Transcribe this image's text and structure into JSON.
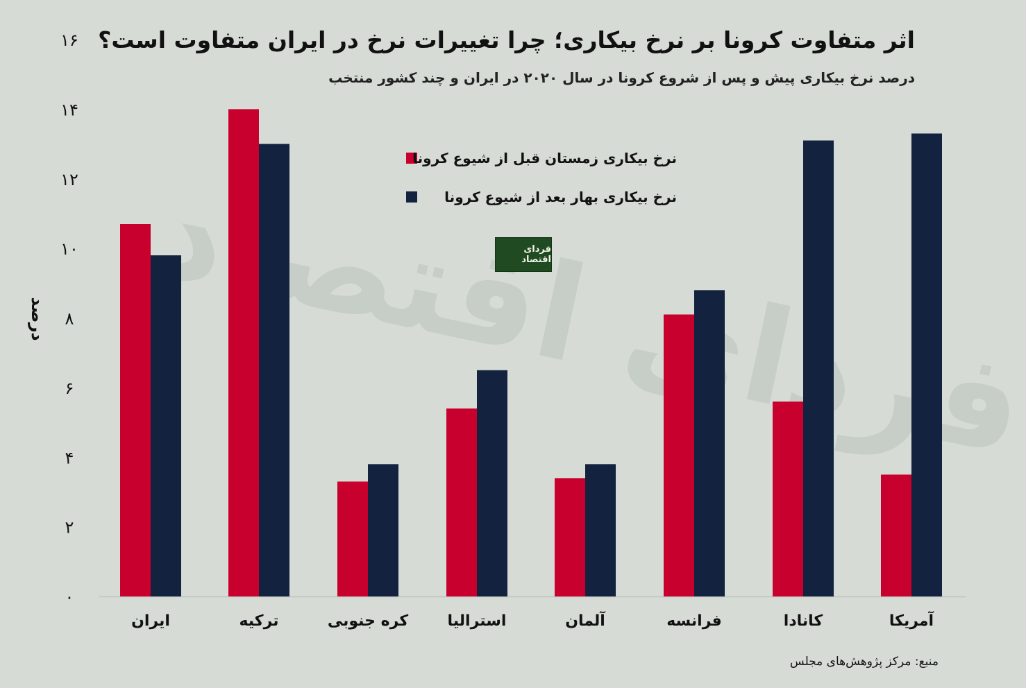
{
  "chart_data": {
    "type": "bar",
    "title": "اثر متفاوت کرونا بر نرخ بیکاری؛ چرا تغییرات نرخ در ایران متفاوت است؟",
    "subtitle": "درصد نرخ بیکاری پیش و پس از شروع کرونا در سال ۲۰۲۰ در ایران و چند کشور منتخب",
    "ylabel": "درصد",
    "xlabel": "",
    "ylim": [
      0,
      16
    ],
    "yticks": [
      "۰",
      "۲",
      "۴",
      "۶",
      "۸",
      "۱۰",
      "۱۲",
      "۱۴",
      "۱۶"
    ],
    "ytick_values": [
      0,
      2,
      4,
      6,
      8,
      10,
      12,
      14,
      16
    ],
    "categories": [
      "ایران",
      "ترکیه",
      "کره جنوبی",
      "استرالیا",
      "آلمان",
      "فرانسه",
      "کانادا",
      "آمریکا"
    ],
    "series": [
      {
        "name": "نرخ بیکاری زمستان قبل از شیوع کرونا",
        "color": "#c8002e",
        "values": [
          10.7,
          14.0,
          3.3,
          5.4,
          3.4,
          8.1,
          5.6,
          3.5
        ]
      },
      {
        "name": "نرخ بیکاری بهار بعد از شیوع کرونا",
        "color": "#12223f",
        "values": [
          9.8,
          13.0,
          3.8,
          6.5,
          3.8,
          8.8,
          13.1,
          13.3
        ]
      }
    ],
    "legend_position": "top-center",
    "source": "منبع: مرکز پژوهش‌های مجلس"
  },
  "logo_text": "فردای اقتصاد",
  "watermark_text": "فردای اقتصاد"
}
